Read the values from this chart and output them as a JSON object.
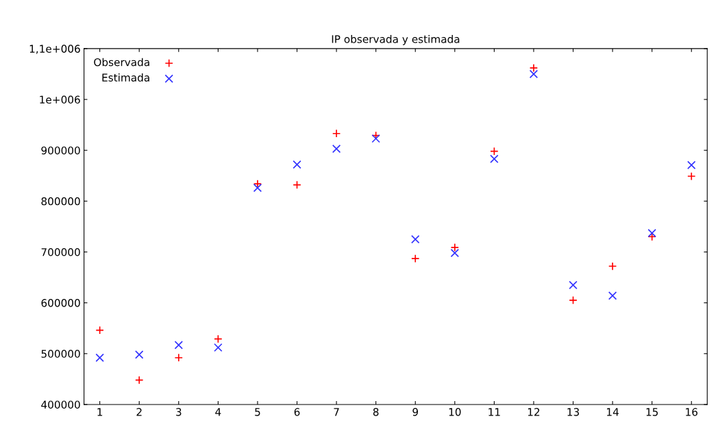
{
  "chart_data": {
    "type": "scatter",
    "title": "IP observada y estimada",
    "x": [
      1,
      2,
      3,
      4,
      5,
      6,
      7,
      8,
      9,
      10,
      11,
      12,
      13,
      14,
      15,
      16
    ],
    "series": [
      {
        "name": "Observada",
        "color": "#ff0000",
        "marker": "plus",
        "values": [
          546000,
          448000,
          492000,
          529000,
          834000,
          832000,
          933000,
          929000,
          687000,
          709000,
          898000,
          1062000,
          605000,
          672000,
          730000,
          849000
        ]
      },
      {
        "name": "Estimada",
        "color": "#3333ff",
        "marker": "cross",
        "values": [
          492000,
          498000,
          517000,
          512000,
          826000,
          872000,
          903000,
          923000,
          725000,
          698000,
          883000,
          1050000,
          635000,
          614000,
          737000,
          871000
        ]
      }
    ],
    "xlim": [
      0.6,
      16.4
    ],
    "xticks": [
      1,
      2,
      3,
      4,
      5,
      6,
      7,
      8,
      9,
      10,
      11,
      12,
      13,
      14,
      15,
      16
    ],
    "ylim": [
      400000,
      1100000
    ],
    "yticks": [
      400000,
      500000,
      600000,
      700000,
      800000,
      900000,
      {
        "value": 1000000,
        "label": "1e+006"
      },
      {
        "value": 1100000,
        "label": "1,1e+006"
      }
    ],
    "legend": "top left",
    "grid": false
  }
}
